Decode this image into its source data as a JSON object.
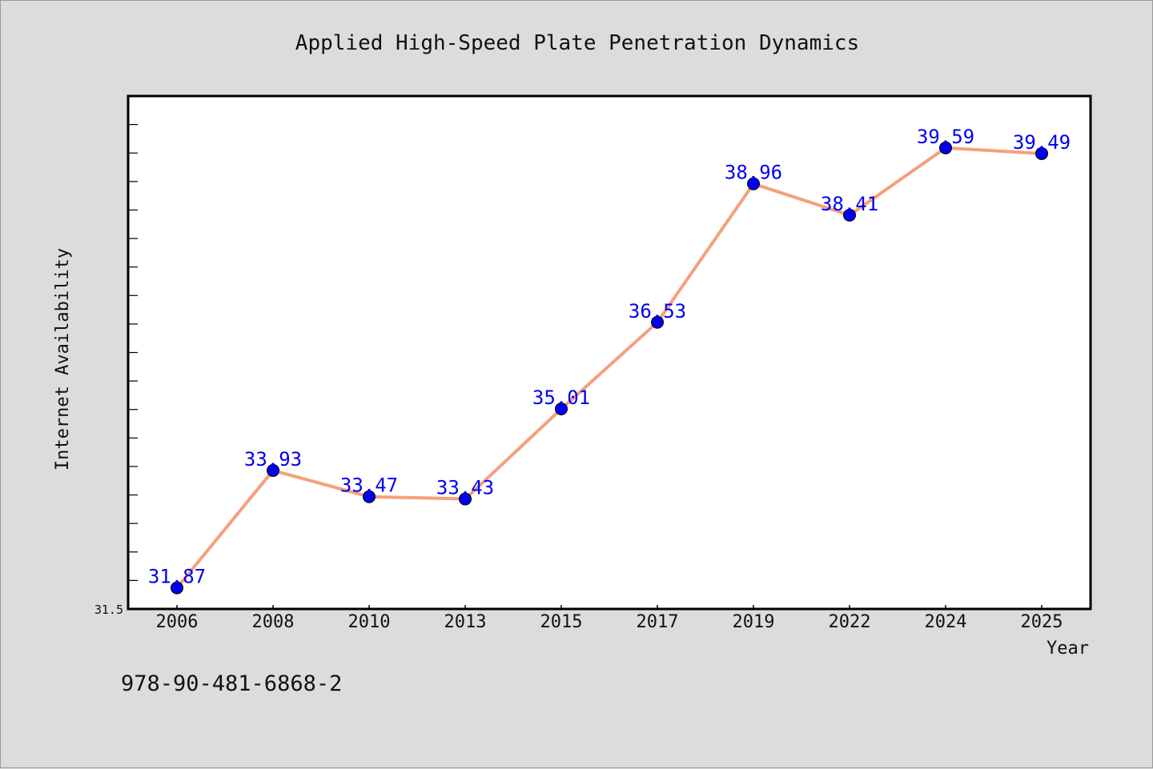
{
  "chart_data": {
    "type": "line",
    "title": "Applied High-Speed Plate Penetration Dynamics",
    "xlabel": "Year",
    "ylabel": "Internet Availability",
    "categories": [
      "2006",
      "2008",
      "2010",
      "2013",
      "2015",
      "2017",
      "2019",
      "2022",
      "2024",
      "2025"
    ],
    "series": [
      {
        "values": [
          31.87,
          33.93,
          33.47,
          33.43,
          35.01,
          36.53,
          38.96,
          38.41,
          39.59,
          39.49
        ]
      }
    ],
    "ylim": [
      31.5,
      40.5
    ],
    "y_tick_labels": [
      "31.5"
    ],
    "grid": false,
    "data_labels": true,
    "colors": {
      "line": "#f5a07c",
      "marker": "#0000ee",
      "label": "#0000ee",
      "background": "#dcdcdc",
      "plot_area": "#ffffff"
    }
  },
  "footer": {
    "isbn": "978-90-481-6868-2"
  }
}
